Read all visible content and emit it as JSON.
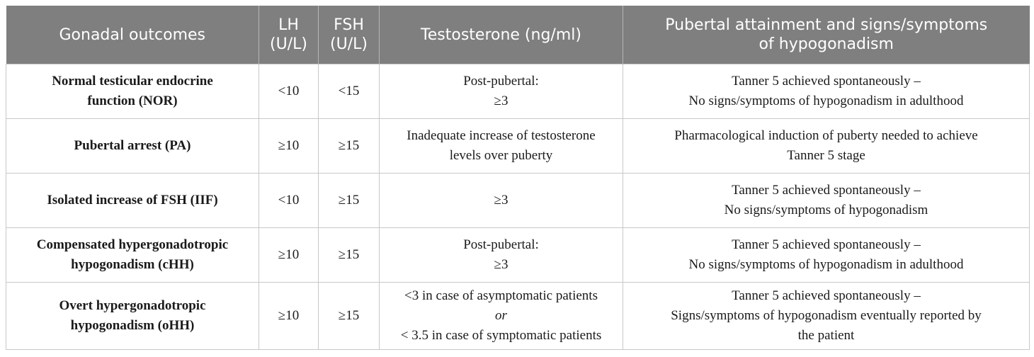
{
  "table": {
    "headers": [
      [
        "Gonadal outcomes"
      ],
      [
        "LH",
        "(U/L)"
      ],
      [
        "FSH",
        "(U/L)"
      ],
      [
        "Testosterone (ng/ml)"
      ],
      [
        "Pubertal attainment and signs/symptoms",
        "of hypogonadism"
      ]
    ],
    "rows": [
      {
        "outcome": [
          "Normal testicular endocrine",
          "function (NOR)"
        ],
        "lh": "<10",
        "fsh": "<15",
        "testosterone": [
          "Post-pubertal:",
          "≥3",
          ""
        ],
        "pubertal": [
          "Tanner 5 achieved spontaneously –",
          "No signs/symptoms of hypogonadism in adulthood",
          ""
        ]
      },
      {
        "outcome": [
          "Pubertal arrest (PA)",
          ""
        ],
        "lh": "≥10",
        "fsh": "≥15",
        "testosterone": [
          "Inadequate increase of testosterone",
          "levels over puberty",
          ""
        ],
        "pubertal": [
          "Pharmacological induction of puberty needed to achieve",
          "Tanner 5 stage",
          ""
        ]
      },
      {
        "outcome": [
          "Isolated increase of FSH (IIF)",
          ""
        ],
        "lh": "<10",
        "fsh": "≥15",
        "testosterone": [
          "≥3",
          "",
          ""
        ],
        "pubertal": [
          "Tanner 5 achieved spontaneously –",
          "No signs/symptoms of hypogonadism",
          ""
        ]
      },
      {
        "outcome": [
          "Compensated hypergonadotropic",
          "hypogonadism (cHH)"
        ],
        "lh": "≥10",
        "fsh": "≥15",
        "testosterone": [
          "Post-pubertal:",
          "≥3",
          ""
        ],
        "pubertal": [
          "Tanner 5 achieved spontaneously –",
          "No signs/symptoms of hypogonadism in adulthood",
          ""
        ]
      },
      {
        "outcome": [
          "Overt hypergonadotropic",
          "hypogonadism (oHH)"
        ],
        "lh": "≥10",
        "fsh": "≥15",
        "testosterone": [
          "<3 in case of asymptomatic patients",
          "or",
          "< 3.5 in case of symptomatic patients"
        ],
        "pubertal": [
          "Tanner 5 achieved spontaneously –",
          "Signs/symptoms of hypogonadism eventually reported by",
          "the patient"
        ]
      }
    ]
  }
}
